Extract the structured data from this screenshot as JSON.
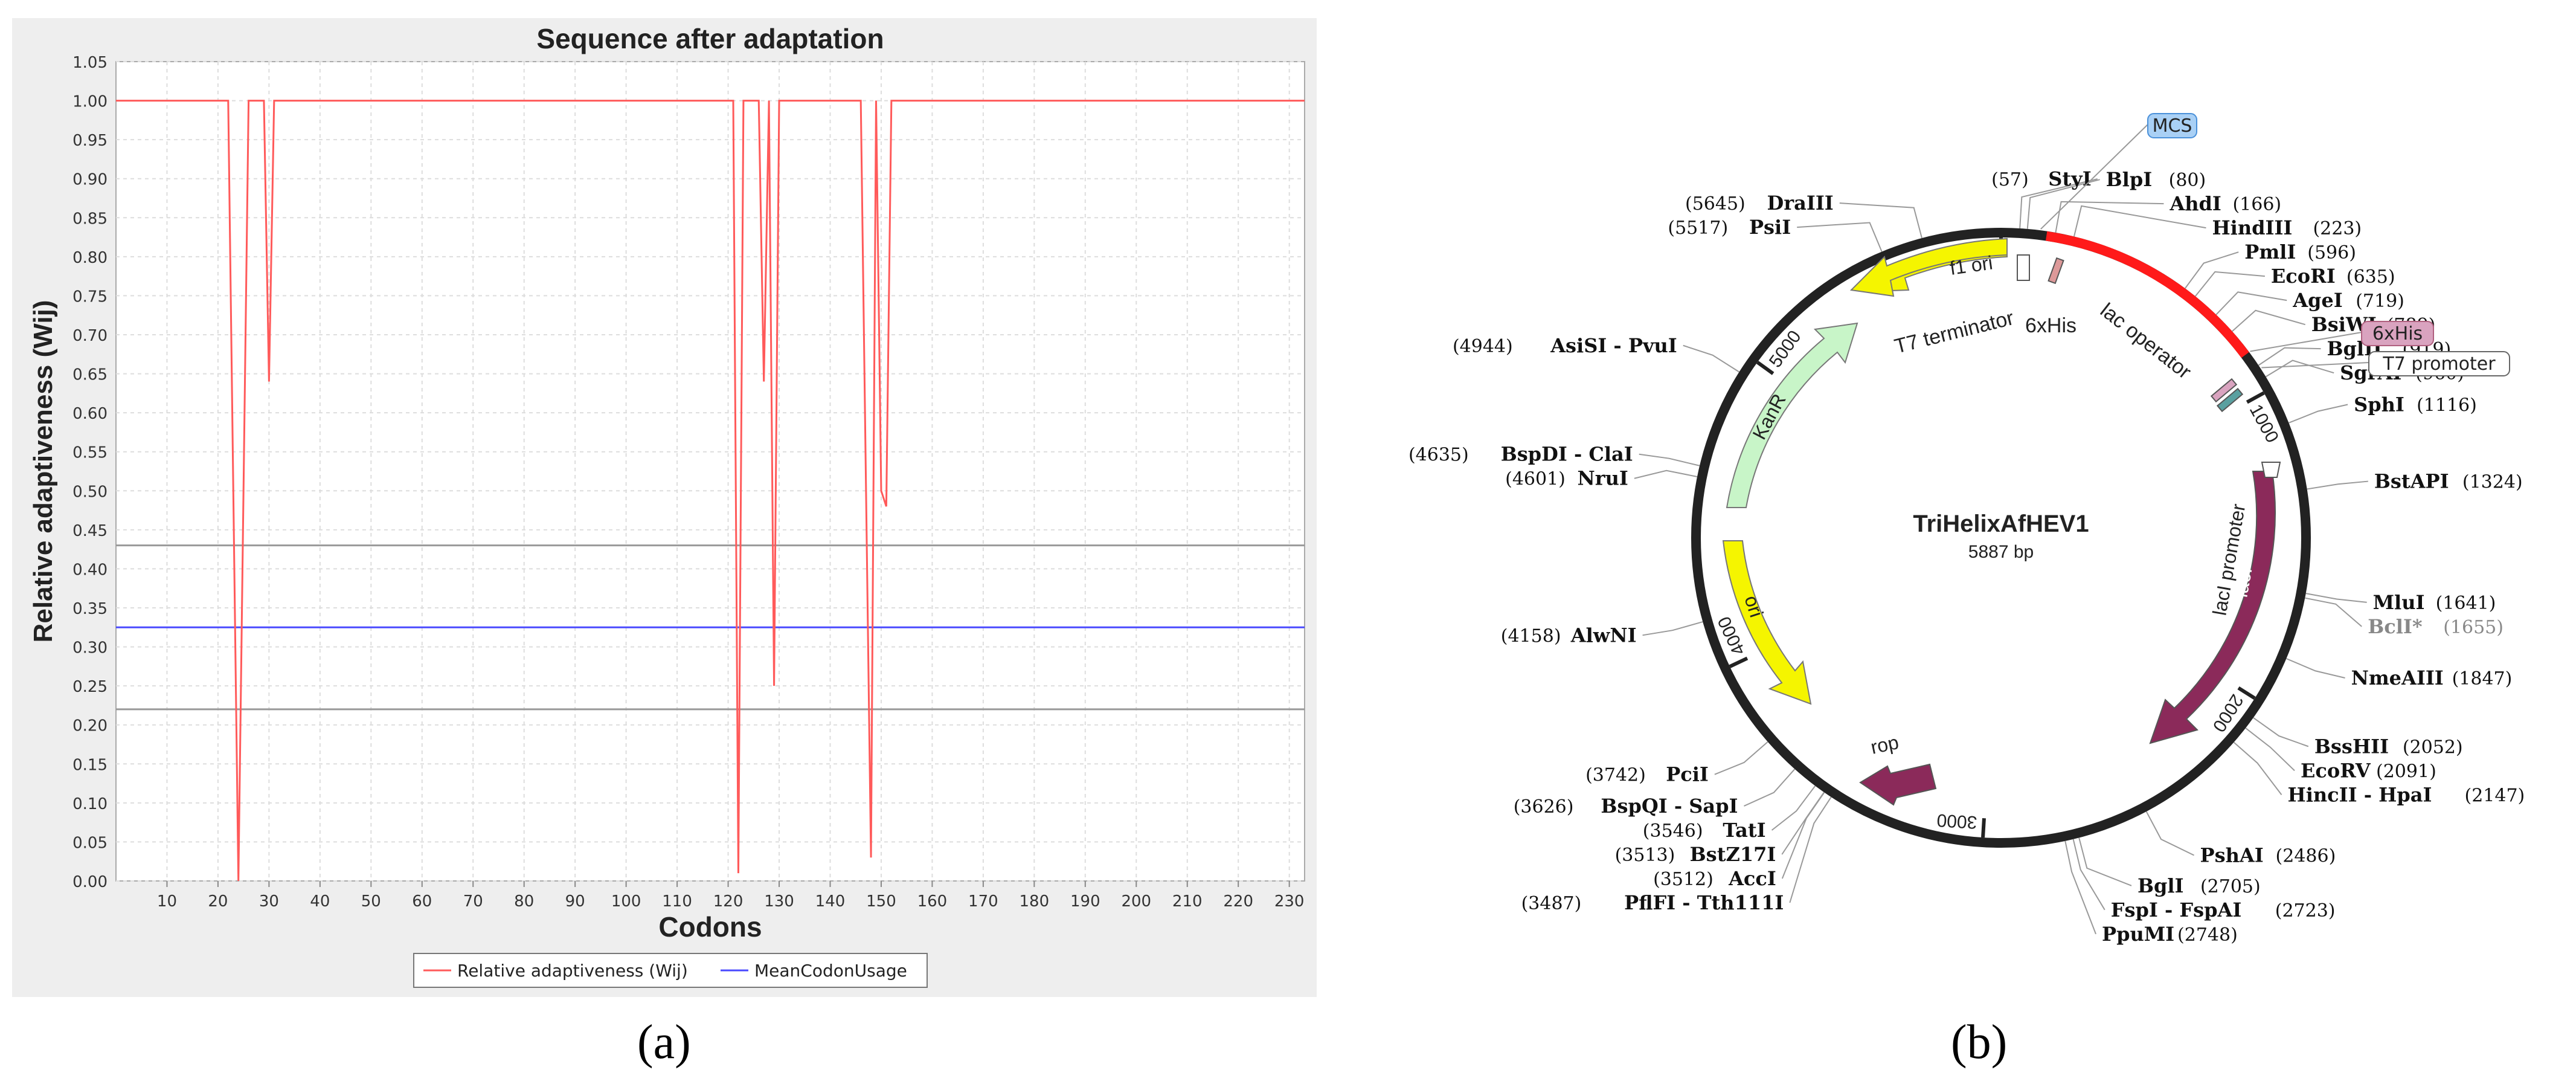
{
  "chart_data": [
    {
      "type": "line",
      "title": "Sequence after adaptation",
      "xlabel": "Codons",
      "ylabel": "Relative adaptiveness (Wij)",
      "xlim": [
        0,
        233
      ],
      "ylim": [
        0,
        1.05
      ],
      "x_ticks": [
        10,
        20,
        30,
        40,
        50,
        60,
        70,
        80,
        90,
        100,
        110,
        120,
        130,
        140,
        150,
        160,
        170,
        180,
        190,
        200,
        210,
        220,
        230
      ],
      "y_ticks": [
        "0.00",
        "0.05",
        "0.10",
        "0.15",
        "0.20",
        "0.25",
        "0.30",
        "0.35",
        "0.40",
        "0.45",
        "0.50",
        "0.55",
        "0.60",
        "0.65",
        "0.70",
        "0.75",
        "0.80",
        "0.85",
        "0.90",
        "0.95",
        "1.00",
        "1.05"
      ],
      "grid": true,
      "legend_position": "bottom",
      "series": [
        {
          "name": "Relative adaptiveness (Wij)",
          "color": "#ff5a5a",
          "points": [
            [
              0,
              1.0
            ],
            [
              22,
              1.0
            ],
            [
              24,
              0.0
            ],
            [
              26,
              1.0
            ],
            [
              29,
              1.0
            ],
            [
              30,
              0.64
            ],
            [
              31,
              1.0
            ],
            [
              121,
              1.0
            ],
            [
              122,
              0.01
            ],
            [
              123,
              1.0
            ],
            [
              126,
              1.0
            ],
            [
              127,
              0.64
            ],
            [
              128,
              1.0
            ],
            [
              129,
              0.25
            ],
            [
              130,
              1.0
            ],
            [
              146,
              1.0
            ],
            [
              148,
              0.03
            ],
            [
              149,
              1.0
            ],
            [
              150,
              0.5
            ],
            [
              151,
              0.48
            ],
            [
              152,
              1.0
            ],
            [
              233,
              1.0
            ]
          ]
        },
        {
          "name": "MeanCodonUsage",
          "color": "#4a4aff",
          "value": 0.325
        }
      ],
      "reference_lines": [
        {
          "value": 0.43,
          "color": "#999999"
        },
        {
          "value": 0.22,
          "color": "#999999"
        }
      ]
    },
    {
      "type": "diagram",
      "title": "TriHelixAfHEV1",
      "subtitle": "5887 bp",
      "total_bp": 5887,
      "scale_ticks": [
        {
          "bp": 1000,
          "label": "1000"
        },
        {
          "bp": 2000,
          "label": "2000"
        },
        {
          "bp": 3000,
          "label": "3000"
        },
        {
          "bp": 4000,
          "label": "4000"
        },
        {
          "bp": 5000,
          "label": "5000"
        },
        {
          "bp": 0,
          "label": ""
        }
      ],
      "highlight": {
        "start": 140,
        "end": 870,
        "color": "#ff1a1a"
      },
      "sites": [
        {
          "name": "StyI",
          "pos": "(57)",
          "bp": 57,
          "side": "left"
        },
        {
          "name": "BlpI",
          "pos": "(80)",
          "bp": 80,
          "side": "right"
        },
        {
          "name": "AhdI",
          "pos": "(166)",
          "bp": 166,
          "side": "right"
        },
        {
          "name": "HindIII",
          "pos": "(223)",
          "bp": 223,
          "side": "right"
        },
        {
          "name": "PmlI",
          "pos": "(596)",
          "bp": 596,
          "side": "right"
        },
        {
          "name": "EcoRI",
          "pos": "(635)",
          "bp": 635,
          "side": "right"
        },
        {
          "name": "AgeI",
          "pos": "(719)",
          "bp": 719,
          "side": "right"
        },
        {
          "name": "BsiWI",
          "pos": "(789)",
          "bp": 789,
          "side": "right"
        },
        {
          "name": "BglII",
          "pos": "(919)",
          "bp": 919,
          "side": "right"
        },
        {
          "name": "SgrAI",
          "pos": "(960)",
          "bp": 960,
          "side": "right"
        },
        {
          "name": "SphI",
          "pos": "(1116)",
          "bp": 1116,
          "side": "right"
        },
        {
          "name": "BstAPI",
          "pos": "(1324)",
          "bp": 1324,
          "side": "right"
        },
        {
          "name": "MluI",
          "pos": "(1641)",
          "bp": 1641,
          "side": "right"
        },
        {
          "name": "BclI*",
          "pos": "(1655)",
          "bp": 1655,
          "side": "right",
          "gray": true
        },
        {
          "name": "NmeAIII",
          "pos": "(1847)",
          "bp": 1847,
          "side": "right"
        },
        {
          "name": "BssHII",
          "pos": "(2052)",
          "bp": 2052,
          "side": "right"
        },
        {
          "name": "EcoRV",
          "pos": "(2091)",
          "bp": 2091,
          "side": "right"
        },
        {
          "name": "HincII - HpaI",
          "pos": "(2147)",
          "bp": 2147,
          "side": "right"
        },
        {
          "name": "PshAI",
          "pos": "(2486)",
          "bp": 2486,
          "side": "right"
        },
        {
          "name": "BglI",
          "pos": "(2705)",
          "bp": 2705,
          "side": "right"
        },
        {
          "name": "FspI - FspAI",
          "pos": "(2723)",
          "bp": 2723,
          "side": "right"
        },
        {
          "name": "PpuMI",
          "pos": "(2748)",
          "bp": 2748,
          "side": "right"
        },
        {
          "name": "PflFI - Tth111I",
          "pos": "(3487)",
          "bp": 3487,
          "side": "left"
        },
        {
          "name": "AccI",
          "pos": "(3512)",
          "bp": 3512,
          "side": "left"
        },
        {
          "name": "BstZ17I",
          "pos": "(3513)",
          "bp": 3513,
          "side": "left"
        },
        {
          "name": "TatI",
          "pos": "(3546)",
          "bp": 3546,
          "side": "left"
        },
        {
          "name": "BspQI - SapI",
          "pos": "(3626)",
          "bp": 3626,
          "side": "left"
        },
        {
          "name": "PciI",
          "pos": "(3742)",
          "bp": 3742,
          "side": "left"
        },
        {
          "name": "AlwNI",
          "pos": "(4158)",
          "bp": 4158,
          "side": "left"
        },
        {
          "name": "NruI",
          "pos": "(4601)",
          "bp": 4601,
          "side": "left"
        },
        {
          "name": "BspDI - ClaI",
          "pos": "(4635)",
          "bp": 4635,
          "side": "left"
        },
        {
          "name": "AsiSI - PvuI",
          "pos": "(4944)",
          "bp": 4944,
          "side": "left"
        },
        {
          "name": "PsiI",
          "pos": "(5517)",
          "bp": 5517,
          "side": "left"
        },
        {
          "name": "DraIII",
          "pos": "(5645)",
          "bp": 5645,
          "side": "left"
        }
      ],
      "feature_tags": [
        {
          "name": "MCS",
          "bp": 120,
          "fill": "#a9d0f5",
          "stroke": "#4a90d9"
        },
        {
          "name": "6xHis",
          "bp": 870,
          "fill": "#d9a3bf",
          "stroke": "#b0607f"
        },
        {
          "name": "T7 promoter",
          "bp": 930,
          "fill": "#ffffff",
          "stroke": "#666666"
        }
      ],
      "arrows": [
        {
          "name": "f1 ori",
          "color": "#f5f500"
        },
        {
          "name": "KanR",
          "color": "#c8f5c8"
        },
        {
          "name": "ori",
          "color": "#f5f500"
        },
        {
          "name": "lacI",
          "color": "#8b2a5a"
        },
        {
          "name": "rop",
          "color": "#8b2a5a"
        }
      ],
      "labels": [
        {
          "name": "T7 terminator"
        },
        {
          "name": "6xHis"
        },
        {
          "name": "lac operator"
        },
        {
          "name": "lacI promoter"
        }
      ]
    }
  ],
  "captions": {
    "a": "(a)",
    "b": "(b)"
  }
}
